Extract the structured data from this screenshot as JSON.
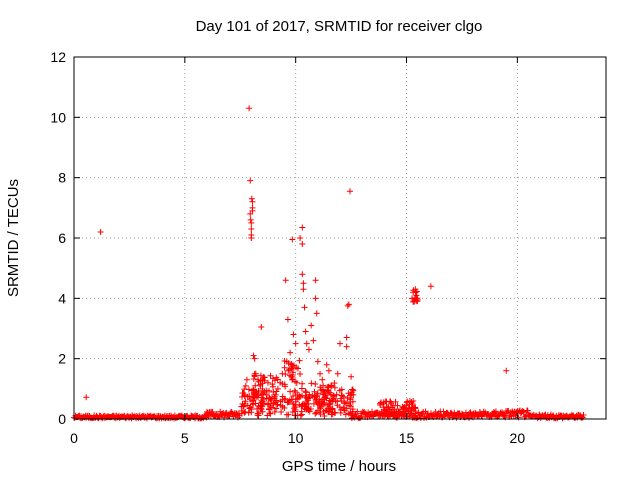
{
  "chart_data": {
    "type": "scatter",
    "title": "Day 101 of 2017, SRMTID for receiver clgo",
    "xlabel": "GPS time / hours",
    "ylabel": "SRMTID / TECUs",
    "xlim": [
      0,
      24
    ],
    "ylim": [
      0,
      12
    ],
    "x_ticks": [
      0,
      5,
      10,
      15,
      20
    ],
    "y_ticks": [
      0,
      2,
      4,
      6,
      8,
      10,
      12
    ],
    "x_tick_labels": [
      "0",
      "5",
      "10",
      "15",
      "20"
    ],
    "y_tick_labels": [
      "0",
      "2",
      "4",
      "6",
      "8",
      "10",
      "12"
    ],
    "grid": true,
    "marker": "+",
    "color": "#ff0000",
    "baseline_segments": [
      {
        "x0": 0.0,
        "x1": 6.0,
        "y_low": 0.02,
        "y_high": 0.12
      },
      {
        "x0": 6.0,
        "x1": 7.5,
        "y_low": 0.05,
        "y_high": 0.25
      },
      {
        "x0": 12.5,
        "x1": 19.0,
        "y_low": 0.03,
        "y_high": 0.25
      },
      {
        "x0": 19.0,
        "x1": 20.5,
        "y_low": 0.05,
        "y_high": 0.3
      },
      {
        "x0": 20.5,
        "x1": 23.0,
        "y_low": 0.02,
        "y_high": 0.15
      }
    ],
    "points": [
      [
        0.55,
        0.72
      ],
      [
        1.2,
        6.2
      ],
      [
        7.6,
        0.5
      ],
      [
        7.7,
        0.8
      ],
      [
        7.75,
        1.1
      ],
      [
        7.8,
        1.3
      ],
      [
        7.9,
        10.3
      ],
      [
        7.95,
        7.9
      ],
      [
        7.95,
        6.8
      ],
      [
        7.97,
        6.6
      ],
      [
        8.0,
        6.5
      ],
      [
        8.0,
        6.3
      ],
      [
        8.0,
        6.1
      ],
      [
        8.0,
        6.0
      ],
      [
        8.02,
        7.3
      ],
      [
        8.05,
        7.2
      ],
      [
        8.05,
        6.9
      ],
      [
        8.05,
        7.0
      ],
      [
        8.1,
        2.1
      ],
      [
        8.15,
        2.0
      ],
      [
        8.2,
        1.5
      ],
      [
        8.3,
        1.3
      ],
      [
        8.4,
        1.1
      ],
      [
        8.45,
        3.05
      ],
      [
        8.5,
        1.0
      ],
      [
        8.6,
        0.9
      ],
      [
        8.7,
        0.8
      ],
      [
        8.8,
        0.7
      ],
      [
        8.9,
        0.6
      ],
      [
        9.0,
        0.5
      ],
      [
        9.1,
        0.8
      ],
      [
        9.2,
        1.0
      ],
      [
        9.3,
        1.2
      ],
      [
        9.4,
        1.5
      ],
      [
        9.5,
        1.7
      ],
      [
        9.55,
        4.6
      ],
      [
        9.6,
        1.9
      ],
      [
        9.65,
        3.3
      ],
      [
        9.75,
        2.2
      ],
      [
        9.8,
        1.4
      ],
      [
        9.85,
        5.95
      ],
      [
        9.9,
        2.8
      ],
      [
        10.0,
        2.5
      ],
      [
        10.05,
        1.2
      ],
      [
        10.2,
        6.0
      ],
      [
        10.3,
        6.35
      ],
      [
        10.3,
        5.8
      ],
      [
        10.3,
        4.8
      ],
      [
        10.35,
        4.5
      ],
      [
        10.35,
        4.3
      ],
      [
        10.4,
        3.7
      ],
      [
        10.45,
        2.9
      ],
      [
        10.5,
        2.5
      ],
      [
        10.6,
        2.3
      ],
      [
        10.7,
        3.1
      ],
      [
        10.8,
        2.6
      ],
      [
        10.9,
        4.6
      ],
      [
        10.9,
        4.0
      ],
      [
        10.95,
        3.5
      ],
      [
        11.0,
        1.9
      ],
      [
        11.1,
        1.5
      ],
      [
        11.2,
        1.3
      ],
      [
        11.3,
        0.9
      ],
      [
        11.4,
        1.8
      ],
      [
        11.5,
        1.6
      ],
      [
        11.6,
        1.1
      ],
      [
        11.8,
        0.6
      ],
      [
        11.9,
        1.5
      ],
      [
        12.0,
        2.5
      ],
      [
        12.3,
        2.7
      ],
      [
        12.3,
        2.4
      ],
      [
        12.35,
        3.75
      ],
      [
        12.4,
        3.8
      ],
      [
        12.45,
        7.55
      ],
      [
        12.5,
        1.4
      ],
      [
        12.6,
        0.8
      ],
      [
        15.25,
        4.0
      ],
      [
        15.3,
        4.2
      ],
      [
        15.35,
        3.9
      ],
      [
        15.4,
        4.3
      ],
      [
        15.45,
        4.1
      ],
      [
        15.5,
        3.95
      ],
      [
        16.1,
        4.4
      ],
      [
        19.5,
        1.6
      ]
    ],
    "dense_blobs": [
      {
        "x0": 7.5,
        "x1": 12.6,
        "y_low": 0.1,
        "y_high": 1.0
      },
      {
        "x0": 8.0,
        "x1": 9.2,
        "y_low": 0.3,
        "y_high": 1.5
      },
      {
        "x0": 9.4,
        "x1": 10.2,
        "y_low": 0.5,
        "y_high": 2.0
      },
      {
        "x0": 10.2,
        "x1": 11.8,
        "y_low": 0.2,
        "y_high": 1.2
      },
      {
        "x0": 13.8,
        "x1": 15.5,
        "y_low": 0.1,
        "y_high": 0.6
      },
      {
        "x0": 15.25,
        "x1": 15.5,
        "y_low": 3.8,
        "y_high": 4.3
      }
    ]
  }
}
